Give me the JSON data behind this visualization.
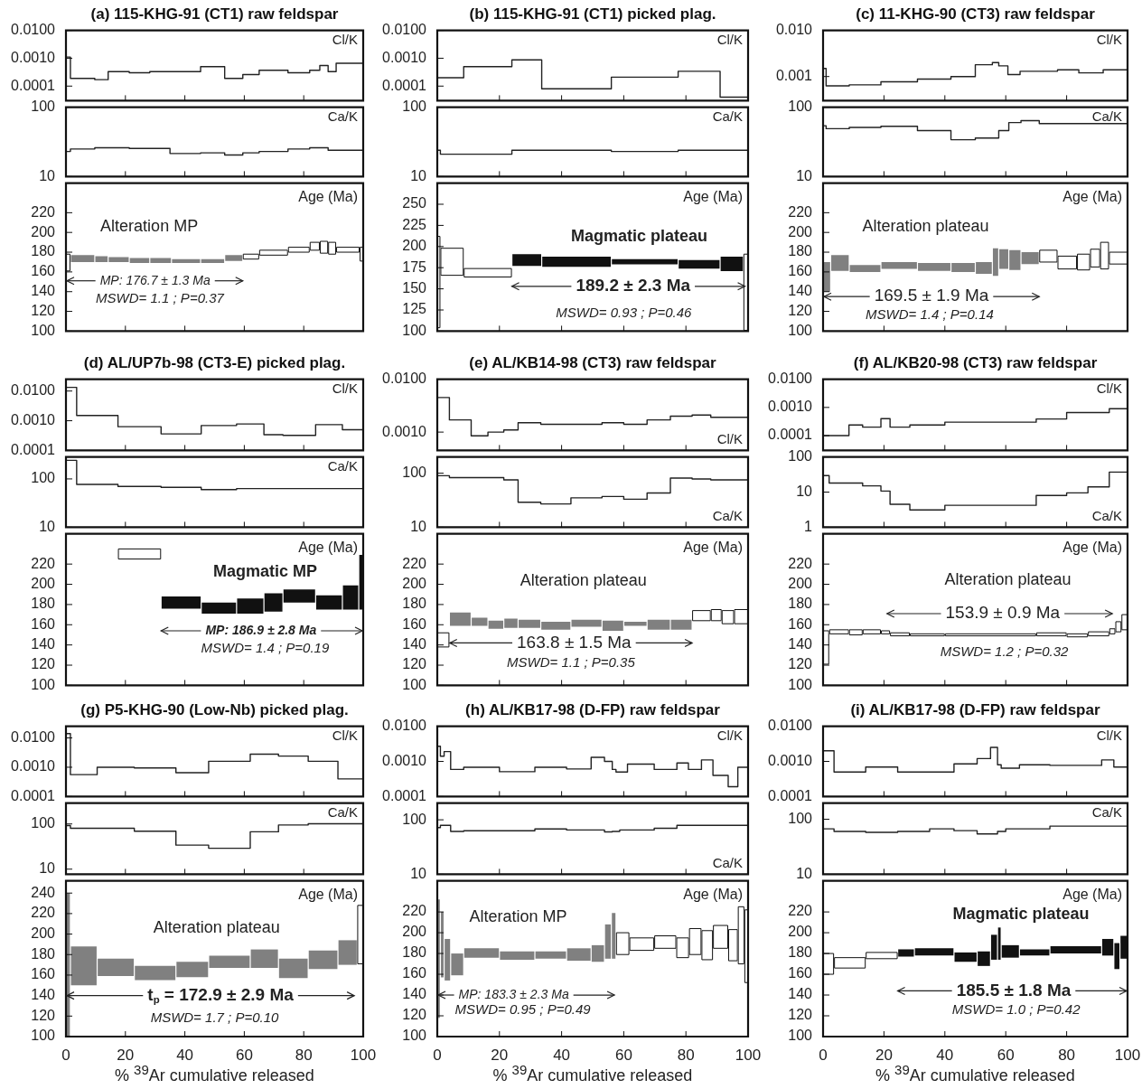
{
  "chart_data": [
    {
      "type": "step",
      "title": "(a) 115-KHG-91 (CT1) raw feldspar",
      "x": [
        0,
        1.5,
        9.7,
        14.2,
        21.3,
        28.2,
        45.3,
        53.4,
        59.5,
        65,
        74.7,
        82,
        85.4,
        88.2,
        90.9,
        98.8,
        100
      ],
      "values": [
        0.008,
        0.0011,
        0.00019,
        0.00017,
        0.00033,
        0.0003,
        0.00033,
        0.0005,
        0.00019,
        0.00026,
        0.00037,
        0.0003,
        0.00037,
        0.00055,
        0.00033,
        0.00066,
        0.00066
      ],
      "color": "#222222",
      "log": true,
      "xlim": [
        0,
        100
      ],
      "xticks": [
        0,
        20,
        40,
        60,
        80,
        100
      ],
      "ylim": [
        3e-05,
        0.01
      ],
      "yticks": [
        {
          "value": 0.0001,
          "label": "0.0001"
        },
        {
          "value": 0.001,
          "label": "0.0010"
        },
        {
          "value": 0.01,
          "label": "0.0100"
        }
      ],
      "tick_labels": "y",
      "annotations": [
        "Cl/K"
      ]
    },
    {
      "type": "step",
      "x": [
        0,
        1.5,
        9.7,
        21.3,
        35,
        45.3,
        53.4,
        59.5,
        65,
        74.7,
        82,
        88.2,
        90.9,
        100
      ],
      "values": [
        15,
        23,
        25,
        26,
        25.5,
        21.5,
        22,
        20.5,
        22,
        23,
        25,
        26,
        24,
        24
      ],
      "color": "#222222",
      "log": true,
      "xlim": [
        0,
        100
      ],
      "xticks": [
        0,
        20,
        40,
        60,
        80,
        100
      ],
      "ylim": [
        10,
        100
      ],
      "yticks": [
        10,
        100
      ],
      "tick_labels": "y",
      "annotations": [
        "Ca/K"
      ]
    },
    {
      "type": "bar",
      "x": [
        0.75,
        5.6,
        11.95,
        17.75,
        24.75,
        31.85,
        40.4,
        49.35,
        56.45,
        62.25,
        69.85,
        78.35,
        83.7,
        86.8,
        89.55,
        94.85,
        99.4
      ],
      "base": [
        161,
        170,
        170,
        170,
        169,
        169,
        169,
        169,
        171,
        173,
        177,
        180,
        182,
        179,
        178,
        180,
        171
      ],
      "values": [
        17,
        7,
        6,
        5,
        5,
        5,
        4,
        4,
        6,
        5,
        5,
        5,
        8,
        12,
        12,
        5,
        14
      ],
      "colors": [
        "#ffffff",
        "#808080",
        "#808080",
        "#808080",
        "#808080",
        "#808080",
        "#808080",
        "#808080",
        "#808080",
        "#ffffff",
        "#ffffff",
        "#ffffff",
        "#ffffff",
        "#ffffff",
        "#ffffff",
        "#ffffff",
        "#ffffff"
      ],
      "xlim": [
        0,
        100
      ],
      "xticks": [
        0,
        20,
        40,
        60,
        80,
        100
      ],
      "ylim": [
        100,
        250
      ],
      "yticks": [
        100,
        120,
        140,
        160,
        180,
        200,
        220
      ],
      "tick_labels": "y",
      "annotations": [
        "Age (Ma)",
        "Alteration MP",
        "MP: 176.7 ± 1.3 Ma",
        "MSWD= 1.1 ; P=0.37"
      ]
    },
    {
      "type": "step",
      "title": "(b) 115-KHG-91 (CT1) picked plag.",
      "x": [
        0,
        8.5,
        24,
        33.6,
        56,
        77.5,
        91,
        99,
        100
      ],
      "values": [
        0.0075,
        0.0002,
        0.0005,
        0.00087,
        8e-05,
        0.00021,
        0.00034,
        4e-05,
        4e-05
      ],
      "color": "#222222",
      "log": true,
      "xlim": [
        0,
        100
      ],
      "xticks": [
        0,
        20,
        40,
        60,
        80,
        100
      ],
      "ylim": [
        3e-05,
        0.01
      ],
      "yticks": [
        {
          "value": 0.0001,
          "label": "0.0001"
        },
        {
          "value": 0.001,
          "label": "0.0010"
        },
        {
          "value": 0.01,
          "label": "0.0100"
        }
      ],
      "tick_labels": "y",
      "annotations": [
        "Cl/K"
      ]
    },
    {
      "type": "step",
      "x": [
        0,
        1,
        24,
        56,
        77.5,
        91,
        100
      ],
      "values": [
        15,
        24,
        21,
        24,
        23,
        24,
        24
      ],
      "color": "#222222",
      "log": true,
      "xlim": [
        0,
        100
      ],
      "xticks": [
        0,
        20,
        40,
        60,
        80,
        100
      ],
      "ylim": [
        10,
        100
      ],
      "yticks": [
        10,
        100
      ],
      "tick_labels": "y",
      "annotations": [
        "Ca/K"
      ]
    },
    {
      "type": "bar",
      "x": [
        0.5,
        4.75,
        16.25,
        28.8,
        44.8,
        66.75,
        84.25,
        94.75,
        99.25
      ],
      "base": [
        104,
        166,
        164,
        177,
        176,
        179,
        174,
        171,
        101
      ],
      "values": [
        108,
        32,
        10,
        14,
        12,
        6,
        10,
        17,
        90
      ],
      "colors": [
        "#ffffff",
        "#ffffff",
        "#ffffff",
        "#111111",
        "#111111",
        "#111111",
        "#111111",
        "#111111",
        "#ffffff"
      ],
      "xlim": [
        0,
        100
      ],
      "xticks": [
        0,
        20,
        40,
        60,
        80,
        100
      ],
      "ylim": [
        100,
        275
      ],
      "yticks": [
        100,
        125,
        150,
        175,
        200,
        225,
        250
      ],
      "tick_labels": "y",
      "annotations": [
        "Age (Ma)",
        "Magmatic plateau",
        {
          "text": "189.2 ± 2.3 Ma",
          "x": 99,
          "y": 153
        },
        "MSWD= 0.93 ; P=0.46"
      ]
    },
    {
      "type": "step",
      "title": "(c) 11-KHG-90 (CT3) raw feldspar",
      "x": [
        0,
        1,
        8.6,
        19,
        31,
        42,
        50,
        55.6,
        57.7,
        60.7,
        64.7,
        77,
        84,
        92,
        94,
        100
      ],
      "values": [
        0.0036,
        0.0015,
        0.00063,
        0.00066,
        0.00077,
        0.00088,
        0.001,
        0.0018,
        0.002,
        0.0017,
        0.0011,
        0.0013,
        0.0014,
        0.0012,
        0.0014,
        0.0014
      ],
      "color": "#222222",
      "log": true,
      "xlim": [
        0,
        100
      ],
      "xticks": [
        0,
        20,
        40,
        60,
        80,
        100
      ],
      "ylim": [
        0.0003,
        0.01
      ],
      "yticks": [
        {
          "value": 0.001,
          "label": "0.001"
        },
        {
          "value": 0.01,
          "label": "0.010"
        }
      ],
      "tick_labels": "y",
      "annotations": [
        "Cl/K"
      ]
    },
    {
      "type": "step",
      "x": [
        0,
        1,
        8.6,
        19,
        31,
        42,
        50,
        57.7,
        61,
        65,
        71,
        77,
        100
      ],
      "values": [
        43,
        54,
        49,
        51,
        53,
        46,
        34,
        36,
        46,
        60,
        64,
        58,
        58
      ],
      "color": "#222222",
      "log": true,
      "xlim": [
        0,
        100
      ],
      "xticks": [
        0,
        20,
        40,
        60,
        80,
        100
      ],
      "ylim": [
        10,
        100
      ],
      "yticks": [
        10,
        100
      ],
      "tick_labels": "y",
      "annotations": [
        "Ca/K"
      ]
    },
    {
      "type": "bar",
      "x": [
        1.25,
        5.55,
        13.8,
        25,
        36.5,
        46,
        52.8,
        56.65,
        59.35,
        63,
        68,
        74,
        80.2,
        85.55,
        89.35,
        92.45,
        96.95
      ],
      "base": [
        140,
        161,
        160,
        163,
        161,
        160,
        158,
        156,
        163,
        162,
        168,
        170,
        163,
        162,
        165,
        163,
        168
      ],
      "values": [
        30,
        16,
        7,
        7,
        8,
        9,
        12,
        28,
        20,
        20,
        12,
        12,
        13,
        16,
        18,
        27,
        12
      ],
      "colors": [
        "#808080",
        "#808080",
        "#808080",
        "#808080",
        "#808080",
        "#808080",
        "#808080",
        "#808080",
        "#808080",
        "#808080",
        "#808080",
        "#ffffff",
        "#ffffff",
        "#ffffff",
        "#ffffff",
        "#ffffff",
        "#ffffff"
      ],
      "xlim": [
        0,
        100
      ],
      "xticks": [
        0,
        20,
        40,
        60,
        80,
        100
      ],
      "ylim": [
        100,
        250
      ],
      "yticks": [
        100,
        120,
        140,
        160,
        180,
        200,
        220
      ],
      "tick_labels": "y",
      "annotations": [
        "Age (Ma)",
        "Alteration plateau",
        "169.5 ± 1.9 Ma",
        "MSWD= 1.4 ; P=0.14"
      ]
    },
    {
      "type": "step",
      "title": "(d) AL/UP7b-98 (CT3-E) picked plag.",
      "x": [
        0,
        3.6,
        17.5,
        32,
        45.5,
        57.4,
        66.6,
        73,
        84,
        93,
        98.5,
        100
      ],
      "values": [
        0.024,
        0.0133,
        0.0015,
        0.00063,
        0.00036,
        0.00069,
        0.00078,
        0.00034,
        0.00032,
        0.00074,
        0.0005,
        0.0005
      ],
      "color": "#222222",
      "log": true,
      "xlim": [
        0,
        100
      ],
      "xticks": [
        0,
        20,
        40,
        60,
        80,
        100
      ],
      "ylim": [
        0.0001,
        0.025
      ],
      "yticks": [
        {
          "value": 0.0001,
          "label": "0.0001"
        },
        {
          "value": 0.001,
          "label": "0.0010"
        },
        {
          "value": 0.01,
          "label": "0.0100"
        }
      ],
      "tick_labels": "y",
      "annotations": [
        "Cl/K"
      ]
    },
    {
      "type": "step",
      "x": [
        0,
        3.6,
        17.5,
        32,
        45.5,
        57.4,
        73,
        100
      ],
      "values": [
        66,
        242,
        77,
        70,
        67,
        60,
        63,
        63
      ],
      "color": "#222222",
      "log": true,
      "xlim": [
        0,
        100
      ],
      "xticks": [
        0,
        20,
        40,
        60,
        80,
        100
      ],
      "ylim": [
        10,
        285
      ],
      "yticks": [
        10,
        100
      ],
      "tick_labels": "y",
      "annotations": [
        "Ca/K"
      ]
    },
    {
      "type": "bar",
      "x": [
        24.75,
        38.75,
        51.45,
        62,
        69.8,
        78.5,
        88.5,
        95.75,
        99.25
      ],
      "base": [
        225,
        176,
        171,
        171,
        173,
        182,
        175,
        175,
        175
      ],
      "values": [
        10,
        12,
        11,
        15,
        18,
        13,
        14,
        24,
        54
      ],
      "colors": [
        "#ffffff",
        "#111111",
        "#111111",
        "#111111",
        "#111111",
        "#111111",
        "#111111",
        "#111111",
        "#111111"
      ],
      "xlim": [
        0,
        100
      ],
      "xticks": [
        0,
        20,
        40,
        60,
        80,
        100
      ],
      "ylim": [
        100,
        250
      ],
      "yticks": [
        100,
        120,
        140,
        160,
        180,
        200,
        220
      ],
      "tick_labels": "y",
      "annotations": [
        "Age (Ma)",
        "Magmatic MP",
        "MP: 186.9 ± 2.8 Ma",
        "MSWD= 1.4 ; P=0.19"
      ]
    },
    {
      "type": "step",
      "title": "(e) AL/KB14-98 (CT3) raw feldspar",
      "x": [
        0,
        3.9,
        10.9,
        16.3,
        21.4,
        26,
        33.3,
        53,
        60,
        67.5,
        75,
        82,
        88,
        95.5,
        100
      ],
      "values": [
        0.0095,
        0.0045,
        0.0017,
        0.00085,
        0.001,
        0.0011,
        0.0015,
        0.0014,
        0.0015,
        0.0014,
        0.0017,
        0.002,
        0.0021,
        0.0019,
        0.0019
      ],
      "color": "#222222",
      "log": true,
      "xlim": [
        0,
        100
      ],
      "xticks": [
        0,
        20,
        40,
        60,
        80,
        100
      ],
      "ylim": [
        0.00045,
        0.01
      ],
      "yticks": [
        {
          "value": 0.001,
          "label": "0.0010"
        },
        {
          "value": 0.01,
          "label": "0.0100"
        }
      ],
      "tick_labels": "y",
      "annotations": [
        "Cl/K"
      ]
    },
    {
      "type": "step",
      "x": [
        0,
        3.9,
        21.4,
        26,
        33.3,
        43,
        53,
        60,
        67.5,
        75,
        82,
        88,
        95.5,
        100
      ],
      "values": [
        54,
        90,
        83,
        75,
        29,
        27,
        35,
        37,
        33,
        43,
        81,
        78,
        75,
        75
      ],
      "color": "#222222",
      "log": true,
      "xlim": [
        0,
        100
      ],
      "xticks": [
        0,
        20,
        40,
        60,
        80,
        100
      ],
      "ylim": [
        10,
        200
      ],
      "yticks": [
        10,
        100
      ],
      "tick_labels": "y",
      "annotations": [
        "Ca/K"
      ]
    },
    {
      "type": "bar",
      "x": [
        1.95,
        7.4,
        13.6,
        18.85,
        23.7,
        29.65,
        38.15,
        48,
        56.5,
        63.75,
        71.25,
        78.5,
        85,
        89.75,
        93.5,
        97.75
      ],
      "base": [
        138,
        159,
        159,
        156,
        157,
        157,
        155,
        158,
        154,
        159,
        155,
        155,
        164,
        164,
        161,
        161
      ],
      "values": [
        14,
        13,
        8,
        8,
        9,
        8,
        8,
        7,
        10,
        4,
        10,
        10,
        10,
        11,
        13,
        14
      ],
      "colors": [
        "#ffffff",
        "#808080",
        "#808080",
        "#808080",
        "#808080",
        "#808080",
        "#808080",
        "#808080",
        "#808080",
        "#808080",
        "#808080",
        "#808080",
        "#ffffff",
        "#ffffff",
        "#ffffff",
        "#ffffff"
      ],
      "xlim": [
        0,
        100
      ],
      "xticks": [
        0,
        20,
        40,
        60,
        80,
        100
      ],
      "ylim": [
        100,
        250
      ],
      "yticks": [
        100,
        120,
        140,
        160,
        180,
        200,
        220
      ],
      "tick_labels": "y",
      "annotations": [
        "Age (Ma)",
        "Alteration plateau",
        {
          "text": "163.8 ± 1.5 Ma",
          "x": 4,
          "y": 142
        },
        "MSWD= 1.1 ; P=0.35"
      ]
    },
    {
      "type": "step",
      "title": "(f) AL/KB20-98 (CT3) raw feldspar",
      "x": [
        0,
        8.5,
        13,
        19,
        22,
        28.5,
        40,
        70,
        80,
        94,
        97,
        100
      ],
      "values": [
        0.0009,
        0.0001,
        0.00024,
        0.0002,
        0.0004,
        0.0002,
        0.00024,
        0.0003,
        0.00039,
        0.00066,
        0.0009,
        0.0009
      ],
      "color": "#222222",
      "log": true,
      "xlim": [
        0,
        100
      ],
      "xticks": [
        0,
        20,
        40,
        60,
        80,
        100
      ],
      "ylim": [
        3e-05,
        0.01
      ],
      "yticks": [
        {
          "value": 0.0001,
          "label": "0.0001"
        },
        {
          "value": 0.001,
          "label": "0.0010"
        },
        {
          "value": 0.01,
          "label": "0.0100"
        }
      ],
      "tick_labels": "y",
      "annotations": [
        "Cl/K"
      ]
    },
    {
      "type": "step",
      "x": [
        0,
        2,
        13,
        19,
        22,
        28.5,
        40,
        70,
        80,
        87,
        94,
        97,
        100
      ],
      "values": [
        9.5,
        29.5,
        18,
        15,
        10.7,
        4.5,
        3.1,
        4.2,
        8,
        9.5,
        14,
        37,
        37
      ],
      "color": "#222222",
      "log": true,
      "xlim": [
        0,
        100
      ],
      "xticks": [
        0,
        20,
        40,
        60,
        80,
        100
      ],
      "ylim": [
        1,
        100
      ],
      "yticks": [
        1,
        10,
        100
      ],
      "tick_labels": "y",
      "annotations": [
        "Ca/K"
      ]
    },
    {
      "type": "bar",
      "x": [
        1,
        5.25,
        10.75,
        16,
        20.5,
        25.25,
        34.25,
        55,
        75,
        83.5,
        90.5,
        95,
        97,
        99
      ],
      "base": [
        121,
        151,
        150,
        151,
        151,
        149,
        149,
        149,
        149,
        148,
        149,
        151,
        153,
        155
      ],
      "values": [
        33,
        4,
        5,
        4,
        3,
        3,
        2,
        2,
        3,
        3,
        4,
        5,
        10,
        15
      ],
      "colors": [
        "#ffffff",
        "#ffffff",
        "#ffffff",
        "#ffffff",
        "#ffffff",
        "#ffffff",
        "#ffffff",
        "#ffffff",
        "#ffffff",
        "#ffffff",
        "#ffffff",
        "#ffffff",
        "#ffffff",
        "#ffffff"
      ],
      "xlim": [
        0,
        100
      ],
      "xticks": [
        0,
        20,
        40,
        60,
        80,
        100
      ],
      "ylim": [
        100,
        250
      ],
      "yticks": [
        100,
        120,
        140,
        160,
        180,
        200,
        220
      ],
      "tick_labels": "y",
      "annotations": [
        "Age (Ma)",
        "Alteration plateau",
        "153.9 ± 0.9 Ma",
        "MSWD= 1.2 ; P=0.32"
      ]
    },
    {
      "type": "step",
      "title": "(g) P5-KHG-90 (Low-Nb) picked plag.",
      "x": [
        0,
        1.5,
        10.5,
        23,
        37,
        48,
        62,
        71.5,
        81.5,
        91.5,
        98,
        100
      ],
      "values": [
        0.024,
        0.014,
        0.00056,
        0.001,
        0.00095,
        0.00065,
        0.0016,
        0.0028,
        0.0024,
        0.0016,
        0.0004,
        0.0004
      ],
      "color": "#222222",
      "log": true,
      "xlim": [
        0,
        100
      ],
      "xticks": [
        0,
        20,
        40,
        60,
        80,
        100
      ],
      "ylim": [
        0.0001,
        0.025
      ],
      "yticks": [
        {
          "value": 0.0001,
          "label": "0.0001"
        },
        {
          "value": 0.001,
          "label": "0.0010"
        },
        {
          "value": 0.01,
          "label": "0.0100"
        }
      ],
      "tick_labels": "y",
      "annotations": [
        "Cl/K"
      ]
    },
    {
      "type": "step",
      "x": [
        0,
        1.5,
        23,
        37,
        48,
        62,
        71.5,
        81.5,
        91.5,
        100
      ],
      "values": [
        61,
        92,
        80,
        69,
        34,
        29,
        67,
        95,
        101,
        101
      ],
      "color": "#222222",
      "log": true,
      "xlim": [
        0,
        100
      ],
      "xticks": [
        0,
        20,
        40,
        60,
        80,
        100
      ],
      "ylim": [
        7.7,
        290
      ],
      "yticks": [
        10,
        100
      ],
      "tick_labels": "y",
      "annotations": [
        "Ca/K"
      ]
    },
    {
      "type": "bar",
      "x": [
        0.75,
        6,
        16.75,
        30,
        42.5,
        55,
        66.75,
        76.5,
        86.5,
        94.75,
        99
      ],
      "base": [
        100,
        150,
        159,
        155,
        158,
        167,
        167,
        157,
        166,
        170,
        171
      ],
      "values": [
        140,
        38,
        17,
        14,
        15,
        12,
        18,
        19,
        18,
        24,
        57
      ],
      "colors": [
        "#808080",
        "#808080",
        "#808080",
        "#808080",
        "#808080",
        "#808080",
        "#808080",
        "#808080",
        "#808080",
        "#808080",
        "#ffffff"
      ],
      "xlim": [
        0,
        100
      ],
      "xticks": [
        0,
        20,
        40,
        60,
        80,
        100
      ],
      "ylim": [
        100,
        252
      ],
      "yticks": [
        100,
        120,
        140,
        160,
        180,
        200,
        220,
        240
      ],
      "xlabel": "% $^{39}$Ar cumulative released",
      "annotations": [
        "Age (Ma)",
        "Alteration plateau",
        {
          "text": "t$_{p}$ = 172.9 ± 2.9 Ma",
          "x": 0,
          "y": 140
        },
        "MSWD= 1.7 ; P=0.10"
      ]
    },
    {
      "type": "step",
      "title": "(h) AL/KB17-98 (D-FP) raw feldspar",
      "x": [
        0,
        1,
        2.2,
        4.3,
        8.5,
        20,
        31.4,
        41.6,
        49.5,
        53.8,
        56.3,
        57.5,
        61.2,
        69.8,
        77.1,
        80.8,
        85,
        88.7,
        93.6,
        96.7,
        98.5,
        100
      ],
      "values": [
        0.003,
        0.0027,
        0.0014,
        0.0019,
        0.00059,
        0.00068,
        0.00051,
        0.00068,
        0.00061,
        0.0013,
        0.001,
        0.00059,
        0.0005,
        0.00084,
        0.00059,
        0.0009,
        0.00059,
        0.0011,
        0.0004,
        0.00019,
        0.00068,
        0.00068
      ],
      "color": "#222222",
      "log": true,
      "xlim": [
        0,
        100
      ],
      "xticks": [
        0,
        20,
        40,
        60,
        80,
        100
      ],
      "ylim": [
        0.0001,
        0.01
      ],
      "yticks": [
        {
          "value": 0.0001,
          "label": "0.0001"
        },
        {
          "value": 0.001,
          "label": "0.0010"
        },
        {
          "value": 0.01,
          "label": "0.0100"
        }
      ],
      "tick_labels": "y",
      "annotations": [
        "Cl/K"
      ]
    },
    {
      "type": "step",
      "x": [
        0,
        1,
        4.3,
        8.5,
        31.4,
        41.6,
        53.8,
        56.3,
        58.7,
        69.8,
        77.1,
        87,
        100
      ],
      "values": [
        30,
        72,
        79,
        61,
        63,
        68,
        65,
        60,
        61,
        65,
        70,
        79,
        79
      ],
      "color": "#222222",
      "log": true,
      "xlim": [
        0,
        100
      ],
      "xticks": [
        0,
        20,
        40,
        60,
        80,
        100
      ],
      "ylim": [
        10,
        203
      ],
      "yticks": [
        10,
        100
      ],
      "tick_labels": "y",
      "annotations": [
        "Ca/K"
      ]
    },
    {
      "type": "bar",
      "x": [
        0.5,
        1.6,
        3.25,
        6.4,
        14.25,
        25.7,
        36.5,
        45.55,
        51.65,
        54.9,
        56.75,
        59.65,
        65.8,
        73.35,
        78.95,
        83,
        86.85,
        91.15,
        95.15,
        97.75,
        99.4
      ],
      "base": [
        118,
        157,
        154,
        159,
        176,
        174,
        175,
        173,
        172,
        175,
        175,
        179,
        183,
        185,
        176,
        179,
        174,
        185,
        173,
        170,
        152
      ],
      "values": [
        114,
        63,
        40,
        21,
        9,
        8,
        7,
        12,
        16,
        33,
        44,
        21,
        12,
        12,
        19,
        25,
        28,
        22,
        30,
        55,
        70
      ],
      "colors": [
        "#808080",
        "#808080",
        "#808080",
        "#808080",
        "#808080",
        "#808080",
        "#808080",
        "#808080",
        "#808080",
        "#808080",
        "#808080",
        "#ffffff",
        "#ffffff",
        "#ffffff",
        "#ffffff",
        "#ffffff",
        "#ffffff",
        "#ffffff",
        "#ffffff",
        "#ffffff",
        "#ffffff"
      ],
      "xlim": [
        0,
        100
      ],
      "xticks": [
        0,
        20,
        40,
        60,
        80,
        100
      ],
      "ylim": [
        100,
        250
      ],
      "yticks": [
        100,
        120,
        140,
        160,
        180,
        200,
        220
      ],
      "xlabel": "% $^{39}$Ar cumulative released",
      "annotations": [
        "Age (Ma)",
        "Alteration MP",
        "MP: 183.3 ± 2.3 Ma",
        "MSWD= 0.95 ; P=0.49"
      ]
    },
    {
      "type": "step",
      "title": "(i) AL/KB17-98 (D-FP) raw feldspar",
      "x": [
        0,
        3.6,
        14,
        24.5,
        43,
        50.6,
        55,
        57.3,
        58.5,
        64.5,
        74.5,
        91.5,
        95.5,
        97.5,
        100
      ],
      "values": [
        0.0095,
        0.002,
        0.0005,
        0.00069,
        0.0005,
        0.00085,
        0.0012,
        0.0025,
        0.0008,
        0.00064,
        0.0008,
        0.00077,
        0.0011,
        0.00069,
        0.00069
      ],
      "color": "#222222",
      "log": true,
      "xlim": [
        0,
        100
      ],
      "xticks": [
        0,
        20,
        40,
        60,
        80,
        100
      ],
      "ylim": [
        0.0001,
        0.01
      ],
      "yticks": [
        {
          "value": 0.0001,
          "label": "0.0001"
        },
        {
          "value": 0.001,
          "label": "0.0010"
        },
        {
          "value": 0.01,
          "label": "0.0100"
        }
      ],
      "tick_labels": "y",
      "annotations": [
        "Cl/K"
      ]
    },
    {
      "type": "step",
      "x": [
        0,
        3.6,
        14,
        24.5,
        35,
        43,
        50.6,
        57.3,
        60,
        74.5,
        91.5,
        100
      ],
      "values": [
        54,
        67,
        60,
        58,
        60,
        67,
        62,
        54,
        60,
        67,
        75,
        75
      ],
      "color": "#222222",
      "log": true,
      "xlim": [
        0,
        100
      ],
      "xticks": [
        0,
        20,
        40,
        60,
        80,
        100
      ],
      "ylim": [
        10,
        197
      ],
      "yticks": [
        10,
        100
      ],
      "tick_labels": "y",
      "annotations": [
        "Ca/K"
      ]
    },
    {
      "type": "bar",
      "x": [
        1.8,
        8.8,
        19.25,
        27.25,
        36.5,
        46.8,
        52.8,
        56.15,
        57.9,
        61.5,
        69.5,
        83,
        93.5,
        96.5,
        98.75
      ],
      "base": [
        160,
        166,
        175,
        177,
        178,
        172,
        168,
        174,
        174,
        176,
        178,
        180,
        178,
        165,
        175
      ],
      "values": [
        20,
        10,
        6,
        7,
        7,
        9,
        14,
        24,
        31,
        12,
        6,
        7,
        16,
        25,
        22
      ],
      "colors": [
        "#ffffff",
        "#ffffff",
        "#ffffff",
        "#111111",
        "#111111",
        "#111111",
        "#111111",
        "#111111",
        "#111111",
        "#111111",
        "#111111",
        "#111111",
        "#111111",
        "#111111",
        "#111111"
      ],
      "xlim": [
        0,
        100
      ],
      "xticks": [
        0,
        20,
        40,
        60,
        80,
        100
      ],
      "ylim": [
        100,
        250
      ],
      "yticks": [
        100,
        120,
        140,
        160,
        180,
        200,
        220
      ],
      "xlabel": "% $^{39}$Ar cumulative released",
      "annotations": [
        "Age (Ma)",
        "Magmatic plateau",
        "185.5 ± 1.8 Ma",
        "MSWD= 1.0 ; P=0.42"
      ]
    }
  ]
}
